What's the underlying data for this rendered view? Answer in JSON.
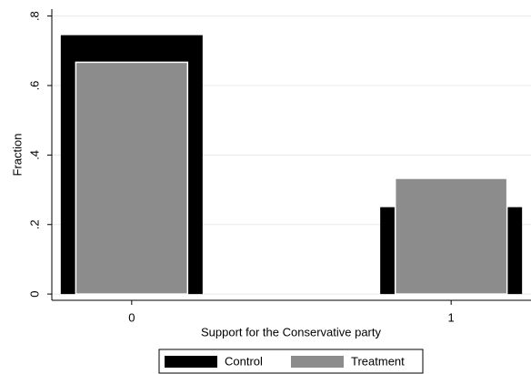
{
  "chart_data": {
    "type": "bar",
    "xlabel": "Support for the Conservative party",
    "ylabel": "Fraction",
    "x": [
      0,
      1
    ],
    "series": [
      {
        "name": "Control",
        "color": "#000000",
        "values": [
          0.745,
          0.25
        ]
      },
      {
        "name": "Treatment",
        "color": "#8c8c8c",
        "values": [
          0.667,
          0.333
        ]
      }
    ],
    "xlim": [
      -0.25,
      1.25
    ],
    "xticks": [
      0,
      1
    ],
    "ylim": [
      -0.018,
      0.82
    ],
    "yticks": [
      {
        "value": 0,
        "label": "0"
      },
      {
        "value": 0.2,
        "label": ".2"
      },
      {
        "value": 0.4,
        "label": ".4"
      },
      {
        "value": 0.6,
        "label": ".6"
      },
      {
        "value": 0.8,
        "label": ".8"
      }
    ],
    "grid": true,
    "legend": "bottom"
  }
}
